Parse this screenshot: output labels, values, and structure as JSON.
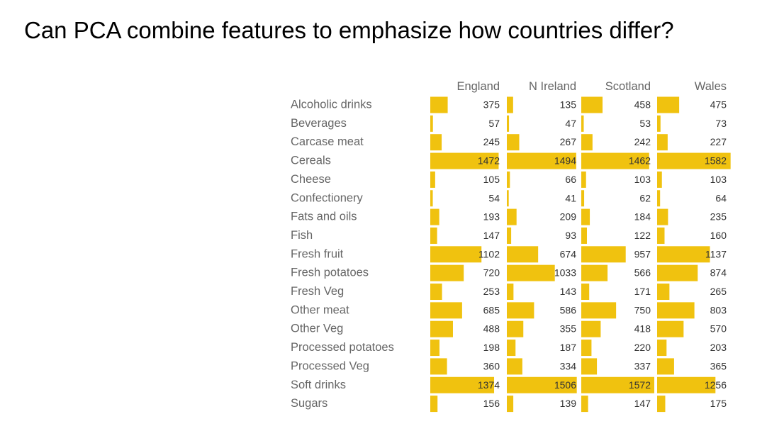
{
  "title": "Can PCA combine features to emphasize how countries differ?",
  "chart_data": {
    "type": "bar",
    "bar_color": "#f0c20f",
    "columns": [
      "England",
      "N Ireland",
      "Scotland",
      "Wales"
    ],
    "categories": [
      "Alcoholic drinks",
      "Beverages",
      "Carcase meat",
      "Cereals",
      "Cheese",
      "Confectionery",
      "Fats and oils",
      "Fish",
      "Fresh fruit",
      "Fresh potatoes",
      "Fresh Veg",
      "Other meat",
      "Other Veg",
      "Processed potatoes",
      "Processed Veg",
      "Soft drinks",
      "Sugars"
    ],
    "series": [
      {
        "name": "England",
        "values": [
          375,
          57,
          245,
          1472,
          105,
          54,
          193,
          147,
          1102,
          720,
          253,
          685,
          488,
          198,
          360,
          1374,
          156
        ]
      },
      {
        "name": "N Ireland",
        "values": [
          135,
          47,
          267,
          1494,
          66,
          41,
          209,
          93,
          674,
          1033,
          143,
          586,
          355,
          187,
          334,
          1506,
          139
        ]
      },
      {
        "name": "Scotland",
        "values": [
          458,
          53,
          242,
          1462,
          103,
          62,
          184,
          122,
          957,
          566,
          171,
          750,
          418,
          220,
          337,
          1572,
          147
        ]
      },
      {
        "name": "Wales",
        "values": [
          475,
          73,
          227,
          1582,
          103,
          64,
          235,
          160,
          1137,
          874,
          265,
          803,
          570,
          203,
          365,
          1256,
          175
        ]
      }
    ]
  }
}
